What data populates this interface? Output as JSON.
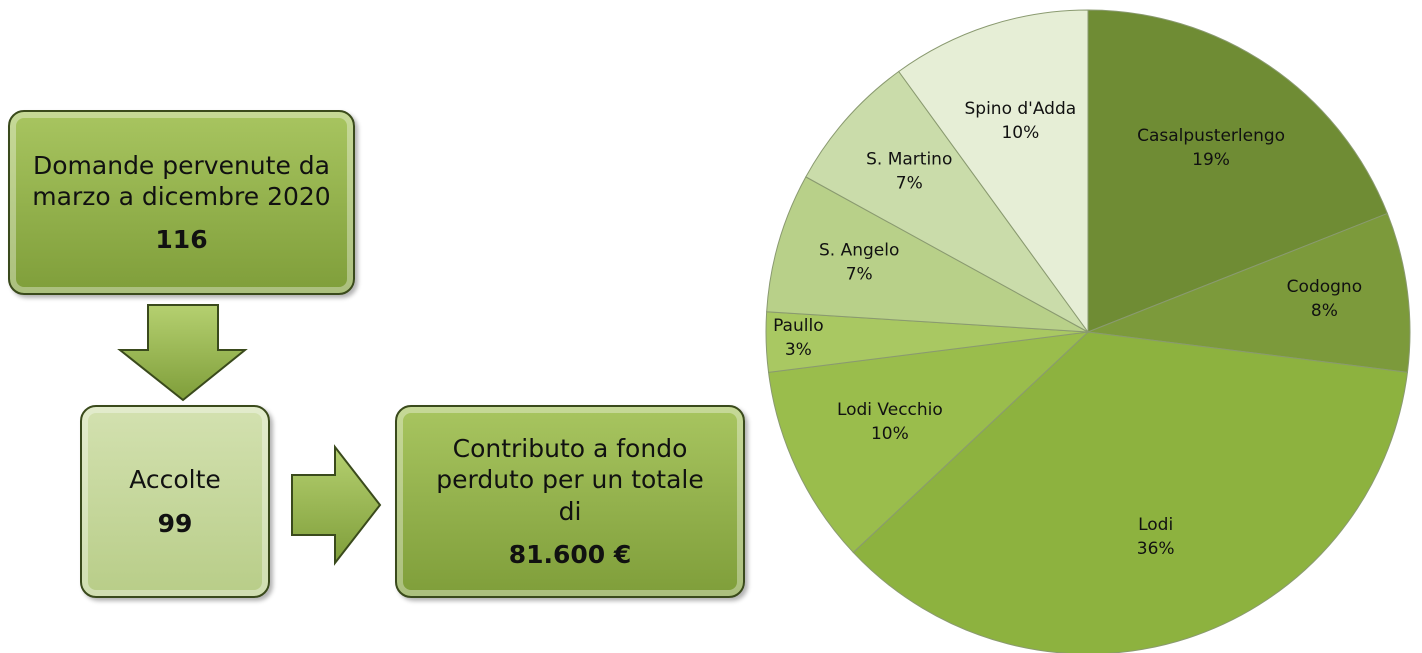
{
  "boxes": [
    {
      "text": "Domande pervenute da marzo a dicembre 2020",
      "value": 116
    },
    {
      "text": "Accolte",
      "value": 99
    },
    {
      "text": "Contributo a fondo perduto per un totale di",
      "value": "81.600 €"
    }
  ],
  "chart_data": {
    "type": "pie",
    "categories": [
      "Casalpusterlengo",
      "Codogno",
      "Lodi",
      "Lodi Vecchio",
      "Paullo",
      "S. Angelo",
      "S. Martino",
      "Spino d'Adda"
    ],
    "values": [
      19,
      8,
      36,
      10,
      3,
      7,
      7,
      10
    ],
    "value_labels": [
      "19%",
      "8%",
      "36%",
      "10%",
      "3%",
      "7%",
      "7%",
      "10%"
    ],
    "colors": [
      "#6f8c34",
      "#7c9a3b",
      "#8db23f",
      "#9abd4c",
      "#a9c862",
      "#b8d089",
      "#cadcaa",
      "#e6eed6"
    ]
  }
}
